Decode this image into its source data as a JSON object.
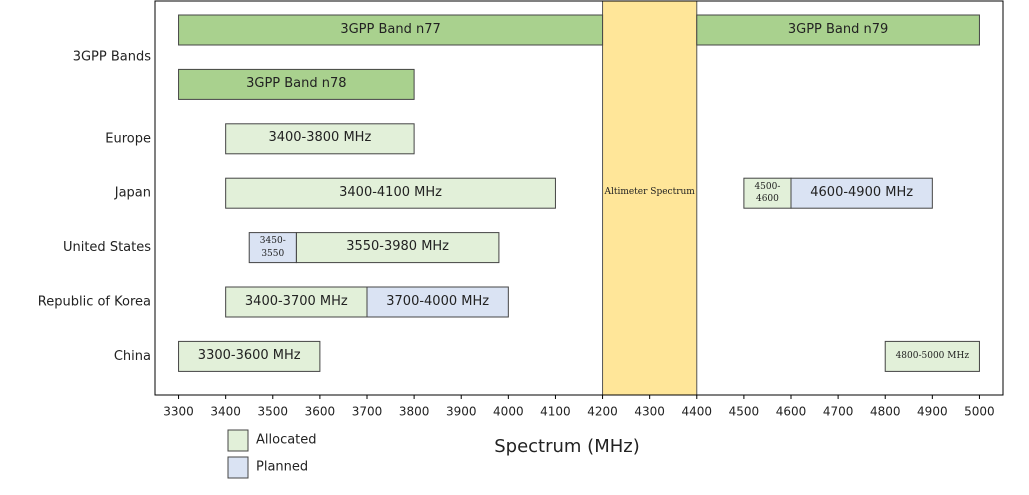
{
  "chart_data": {
    "type": "range",
    "x_label": "Spectrum (MHz)",
    "categories": [
      "3GPP Bands",
      "Europe",
      "Japan",
      "United States",
      "Republic of Korea",
      "China"
    ],
    "xlim": [
      3250,
      5050
    ],
    "xticks": [
      3300,
      3400,
      3500,
      3600,
      3700,
      3800,
      3900,
      4000,
      4100,
      4200,
      4300,
      4400,
      4500,
      4600,
      4700,
      4800,
      4900,
      5000
    ],
    "annotation": {
      "label": "Altimeter Spectrum",
      "start": 4200,
      "end": 4400,
      "color": "#ffe699"
    },
    "bands": {
      "color": "#a9d18e",
      "ranges": [
        {
          "label": "3GPP Band n77",
          "start": 3300,
          "end": 4200,
          "row": 0,
          "lane": 0
        },
        {
          "label": "3GPP Band n79",
          "start": 4400,
          "end": 5000,
          "row": 0,
          "lane": 0
        },
        {
          "label": "3GPP Band n78",
          "start": 3300,
          "end": 3800,
          "row": 0,
          "lane": 1
        }
      ]
    },
    "series": [
      {
        "name": "Allocated",
        "color": "#e2f0d9",
        "ranges": [
          {
            "label": "3400-3800 MHz",
            "start": 3400,
            "end": 3800,
            "row": 1
          },
          {
            "label": "3400-4100 MHz",
            "start": 3400,
            "end": 4100,
            "row": 2
          },
          {
            "label": "4500-4600",
            "start": 4500,
            "end": 4600,
            "row": 2
          },
          {
            "label": "3550-3980 MHz",
            "start": 3550,
            "end": 3980,
            "row": 3
          },
          {
            "label": "3400-3700 MHz",
            "start": 3400,
            "end": 3700,
            "row": 4
          },
          {
            "label": "3300-3600 MHz",
            "start": 3300,
            "end": 3600,
            "row": 5
          },
          {
            "label": "4800-5000 MHz",
            "start": 4800,
            "end": 5000,
            "row": 5
          }
        ]
      },
      {
        "name": "Planned",
        "color": "#dae3f3",
        "ranges": [
          {
            "label": "4600-4900 MHz",
            "start": 4600,
            "end": 4900,
            "row": 2
          },
          {
            "label": "3450-3550",
            "start": 3450,
            "end": 3550,
            "row": 3
          },
          {
            "label": "3700-4000 MHz",
            "start": 3700,
            "end": 4000,
            "row": 4
          }
        ]
      }
    ]
  }
}
